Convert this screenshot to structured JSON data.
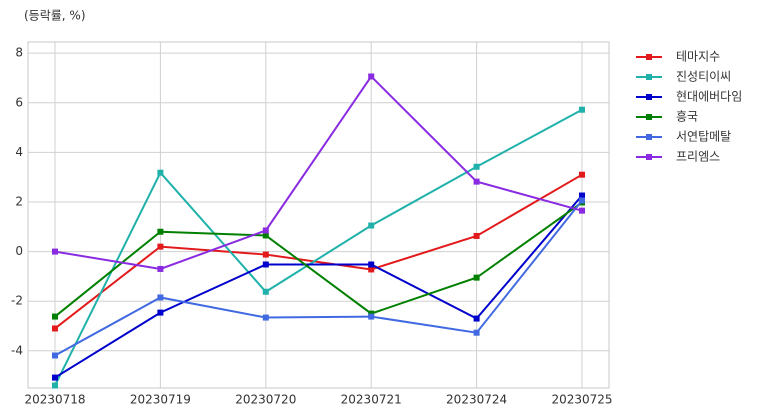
{
  "chart_data": {
    "type": "line",
    "ylabel": "(등락률, %)",
    "categories": [
      "20230718",
      "20230719",
      "20230720",
      "20230721",
      "20230724",
      "20230725"
    ],
    "series": [
      {
        "name": "테마지수",
        "color": "#e31a1c",
        "values": [
          -3.1,
          0.2,
          -0.12,
          -0.72,
          0.63,
          3.1
        ]
      },
      {
        "name": "진성티이씨",
        "color": "#20b2aa",
        "values": [
          -5.4,
          3.18,
          -1.62,
          1.05,
          3.42,
          5.72
        ]
      },
      {
        "name": "현대에버다임",
        "color": "#0000cd",
        "values": [
          -5.08,
          -2.46,
          -0.52,
          -0.52,
          -2.7,
          2.26
        ]
      },
      {
        "name": "흥국",
        "color": "#008000",
        "values": [
          -2.62,
          0.8,
          0.65,
          -2.5,
          -1.05,
          1.98
        ]
      },
      {
        "name": "서연탑메탈",
        "color": "#4169e1",
        "values": [
          -4.19,
          -1.85,
          -2.66,
          -2.62,
          -3.27,
          2.06
        ]
      },
      {
        "name": "프리엠스",
        "color": "#8a2be2",
        "values": [
          0.0,
          -0.7,
          0.85,
          7.06,
          2.82,
          1.65
        ]
      }
    ],
    "ylim": [
      -5.5,
      8.45
    ],
    "yticks": [
      -4,
      -2,
      0,
      2,
      4,
      6,
      8
    ],
    "grid": true,
    "legend": "outside-right"
  }
}
